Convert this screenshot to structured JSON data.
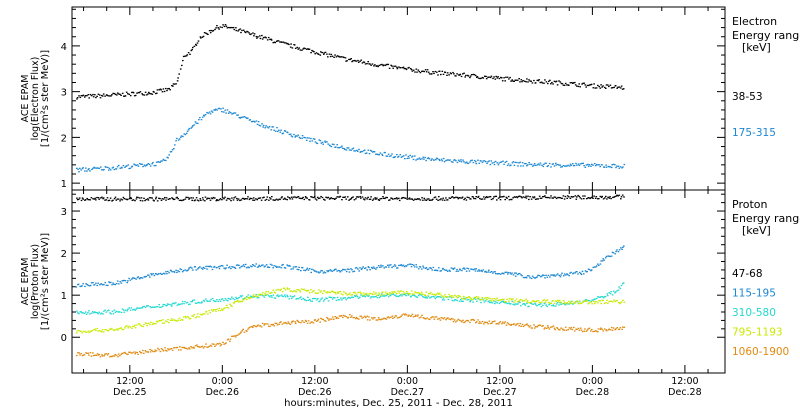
{
  "chart_data": {
    "type": "scatter",
    "xlabel": "hours:minutes, Dec. 25, 2011 - Dec. 28, 2011",
    "x_ticks": [
      {
        "time": "12:00",
        "date": "Dec.25",
        "hours": 12
      },
      {
        "time": "0:00",
        "date": "Dec.26",
        "hours": 24
      },
      {
        "time": "12:00",
        "date": "Dec.26",
        "hours": 36
      },
      {
        "time": "0:00",
        "date": "Dec.27",
        "hours": 48
      },
      {
        "time": "12:00",
        "date": "Dec.27",
        "hours": 60
      },
      {
        "time": "0:00",
        "date": "Dec.28",
        "hours": 72
      },
      {
        "time": "12:00",
        "date": "Dec.28",
        "hours": 84
      }
    ],
    "xlim_hours": [
      4.5,
      89.2
    ],
    "panels": [
      {
        "id": "electron",
        "ylabel": [
          "ACE EPAM",
          "log(Electron Flux)",
          "[1/(cm²s ster MeV)]"
        ],
        "ylim": [
          0.85,
          4.85
        ],
        "yticks": [
          1,
          2,
          3,
          4
        ],
        "legend_title": [
          "Electron",
          "Energy range",
          "[keV]"
        ],
        "series": [
          {
            "name": "38-53",
            "color": "#000000",
            "points": [
              [
                5,
                2.9
              ],
              [
                8,
                2.92
              ],
              [
                12,
                2.96
              ],
              [
                15,
                3.0
              ],
              [
                17,
                3.06
              ],
              [
                18,
                3.2
              ],
              [
                19,
                3.8
              ],
              [
                20,
                3.9
              ],
              [
                21,
                4.2
              ],
              [
                22,
                4.3
              ],
              [
                23,
                4.4
              ],
              [
                24,
                4.45
              ],
              [
                25,
                4.4
              ],
              [
                28,
                4.25
              ],
              [
                32,
                4.05
              ],
              [
                36,
                3.88
              ],
              [
                40,
                3.72
              ],
              [
                44,
                3.6
              ],
              [
                48,
                3.5
              ],
              [
                52,
                3.42
              ],
              [
                56,
                3.36
              ],
              [
                60,
                3.3
              ],
              [
                64,
                3.25
              ],
              [
                68,
                3.2
              ],
              [
                72,
                3.14
              ],
              [
                76,
                3.1
              ]
            ]
          },
          {
            "name": "175-315",
            "color": "#1e88d2",
            "points": [
              [
                5,
                1.3
              ],
              [
                8,
                1.33
              ],
              [
                12,
                1.38
              ],
              [
                14,
                1.42
              ],
              [
                16,
                1.45
              ],
              [
                17,
                1.6
              ],
              [
                18,
                1.95
              ],
              [
                19,
                2.1
              ],
              [
                20,
                2.25
              ],
              [
                21,
                2.4
              ],
              [
                22,
                2.55
              ],
              [
                23,
                2.6
              ],
              [
                24,
                2.62
              ],
              [
                25,
                2.55
              ],
              [
                28,
                2.35
              ],
              [
                32,
                2.12
              ],
              [
                36,
                1.93
              ],
              [
                40,
                1.78
              ],
              [
                44,
                1.66
              ],
              [
                48,
                1.58
              ],
              [
                52,
                1.52
              ],
              [
                56,
                1.48
              ],
              [
                60,
                1.45
              ],
              [
                64,
                1.42
              ],
              [
                68,
                1.41
              ],
              [
                72,
                1.4
              ],
              [
                76,
                1.38
              ]
            ]
          }
        ]
      },
      {
        "id": "proton",
        "ylabel": [
          "ACE EPAM",
          "log(Proton Flux)",
          "[1/(cm²s ster MeV)]"
        ],
        "ylim": [
          -0.85,
          3.5
        ],
        "yticks": [
          0,
          1,
          2,
          3
        ],
        "legend_title": [
          "Proton",
          "Energy range",
          "[keV]"
        ],
        "series": [
          {
            "name": "47-68",
            "color": "#000000",
            "points": [
              [
                5,
                3.3
              ],
              [
                20,
                3.3
              ],
              [
                35,
                3.32
              ],
              [
                50,
                3.31
              ],
              [
                65,
                3.33
              ],
              [
                76,
                3.35
              ]
            ]
          },
          {
            "name": "115-195",
            "color": "#1e88d2",
            "points": [
              [
                5,
                1.25
              ],
              [
                10,
                1.3
              ],
              [
                15,
                1.5
              ],
              [
                20,
                1.65
              ],
              [
                24,
                1.68
              ],
              [
                28,
                1.72
              ],
              [
                32,
                1.7
              ],
              [
                36,
                1.58
              ],
              [
                40,
                1.6
              ],
              [
                44,
                1.68
              ],
              [
                48,
                1.72
              ],
              [
                52,
                1.62
              ],
              [
                56,
                1.62
              ],
              [
                60,
                1.55
              ],
              [
                64,
                1.45
              ],
              [
                68,
                1.5
              ],
              [
                71,
                1.55
              ],
              [
                73,
                1.8
              ],
              [
                75,
                2.05
              ],
              [
                76,
                2.15
              ]
            ]
          },
          {
            "name": "310-580",
            "color": "#22d8d0",
            "points": [
              [
                5,
                0.6
              ],
              [
                10,
                0.62
              ],
              [
                15,
                0.75
              ],
              [
                20,
                0.85
              ],
              [
                24,
                0.92
              ],
              [
                28,
                1.0
              ],
              [
                32,
                0.98
              ],
              [
                36,
                0.9
              ],
              [
                40,
                0.95
              ],
              [
                44,
                1.0
              ],
              [
                48,
                1.02
              ],
              [
                52,
                0.95
              ],
              [
                56,
                0.9
              ],
              [
                60,
                0.85
              ],
              [
                64,
                0.78
              ],
              [
                68,
                0.8
              ],
              [
                72,
                0.9
              ],
              [
                75,
                1.1
              ],
              [
                76,
                1.3
              ]
            ]
          },
          {
            "name": "795-1193",
            "color": "#c8ea00",
            "points": [
              [
                5,
                0.15
              ],
              [
                10,
                0.2
              ],
              [
                15,
                0.35
              ],
              [
                20,
                0.5
              ],
              [
                24,
                0.7
              ],
              [
                28,
                1.0
              ],
              [
                32,
                1.15
              ],
              [
                36,
                1.1
              ],
              [
                40,
                1.05
              ],
              [
                44,
                1.05
              ],
              [
                48,
                1.08
              ],
              [
                52,
                1.02
              ],
              [
                56,
                0.95
              ],
              [
                60,
                0.9
              ],
              [
                64,
                0.88
              ],
              [
                68,
                0.85
              ],
              [
                72,
                0.85
              ],
              [
                76,
                0.86
              ]
            ]
          },
          {
            "name": "1060-1900",
            "color": "#e08a10",
            "points": [
              [
                5,
                -0.38
              ],
              [
                10,
                -0.42
              ],
              [
                15,
                -0.3
              ],
              [
                20,
                -0.22
              ],
              [
                24,
                -0.15
              ],
              [
                26,
                0.1
              ],
              [
                28,
                0.28
              ],
              [
                32,
                0.35
              ],
              [
                36,
                0.4
              ],
              [
                40,
                0.52
              ],
              [
                44,
                0.45
              ],
              [
                48,
                0.55
              ],
              [
                52,
                0.45
              ],
              [
                56,
                0.4
              ],
              [
                60,
                0.35
              ],
              [
                64,
                0.28
              ],
              [
                68,
                0.22
              ],
              [
                72,
                0.18
              ],
              [
                76,
                0.24
              ]
            ]
          }
        ]
      }
    ]
  }
}
